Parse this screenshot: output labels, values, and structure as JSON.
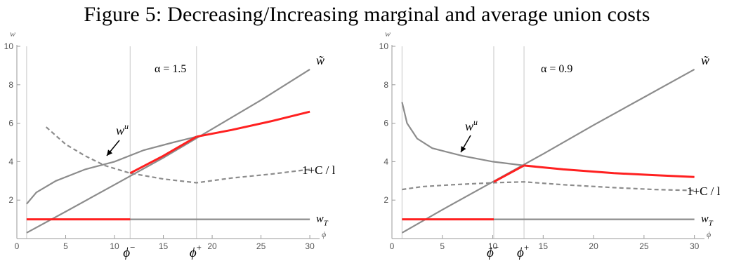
{
  "figure_title": "Figure 5: Decreasing/Increasing marginal and average union costs",
  "chart_data": [
    {
      "type": "line",
      "annotation": "α = 1.5",
      "ylabel": "w",
      "xlabel": "ϕ",
      "xlim": [
        0,
        31
      ],
      "ylim": [
        0,
        10
      ],
      "x_ticks": [
        0,
        5,
        10,
        15,
        20,
        25,
        30
      ],
      "y_ticks": [
        2,
        4,
        6,
        8,
        10
      ],
      "vlines": [
        {
          "x": 11.6,
          "label": "ϕ−"
        },
        {
          "x": 18.4,
          "label": "ϕ+"
        }
      ],
      "series": [
        {
          "name": "w̃",
          "style": "gray",
          "points": [
            [
              1,
              0.3
            ],
            [
              5,
              1.4
            ],
            [
              10,
              2.8
            ],
            [
              15,
              4.2
            ],
            [
              20,
              5.7
            ],
            [
              25,
              7.2
            ],
            [
              30,
              8.8
            ]
          ]
        },
        {
          "name": "wᵘ",
          "style": "gray",
          "points": [
            [
              1,
              1.8
            ],
            [
              2,
              2.4
            ],
            [
              4,
              3.0
            ],
            [
              7,
              3.6
            ],
            [
              10,
              4.0
            ],
            [
              13,
              4.6
            ],
            [
              16,
              5.0
            ],
            [
              18.4,
              5.3
            ]
          ]
        },
        {
          "name": "1+C/l",
          "style": "dashed",
          "points": [
            [
              3,
              5.8
            ],
            [
              5,
              4.9
            ],
            [
              7,
              4.3
            ],
            [
              9,
              3.8
            ],
            [
              11.6,
              3.4
            ],
            [
              15,
              3.1
            ],
            [
              18.4,
              2.9
            ],
            [
              22,
              3.15
            ],
            [
              26,
              3.35
            ],
            [
              30,
              3.6
            ]
          ]
        },
        {
          "name": "w_T",
          "style": "gray",
          "points": [
            [
              1,
              1.0
            ],
            [
              30,
              1.0
            ]
          ]
        },
        {
          "name": "",
          "style": "red",
          "points": [
            [
              1,
              1.0
            ],
            [
              11.6,
              1.0
            ]
          ]
        },
        {
          "name": "",
          "style": "red",
          "points": [
            [
              11.6,
              3.4
            ],
            [
              15,
              4.3
            ],
            [
              18.4,
              5.3
            ]
          ]
        },
        {
          "name": "",
          "style": "red",
          "points": [
            [
              18.4,
              5.3
            ],
            [
              22,
              5.65
            ],
            [
              26,
              6.1
            ],
            [
              30,
              6.6
            ]
          ]
        }
      ],
      "labels": {
        "w_tilde": "w̃",
        "w_u_base": "w",
        "w_u_sup": "u",
        "cost": "1+C / l",
        "w_t_base": "w",
        "w_t_sub": "T",
        "phi_minus_base": "ϕ",
        "phi_minus_sup": "−",
        "phi_plus_base": "ϕ",
        "phi_plus_sup": "+"
      }
    },
    {
      "type": "line",
      "annotation": "α = 0.9",
      "ylabel": "w",
      "xlabel": "ϕ",
      "xlim": [
        0,
        31
      ],
      "ylim": [
        0,
        10
      ],
      "x_ticks": [
        0,
        5,
        10,
        15,
        20,
        25,
        30
      ],
      "y_ticks": [
        2,
        4,
        6,
        8,
        10
      ],
      "vlines": [
        {
          "x": 10.1,
          "label": "ϕ−"
        },
        {
          "x": 13.1,
          "label": "ϕ+"
        }
      ],
      "series": [
        {
          "name": "w̃",
          "style": "gray",
          "points": [
            [
              1,
              0.3
            ],
            [
              5,
              1.5
            ],
            [
              10,
              2.95
            ],
            [
              15,
              4.4
            ],
            [
              20,
              5.9
            ],
            [
              25,
              7.35
            ],
            [
              30,
              8.8
            ]
          ]
        },
        {
          "name": "wᵘ",
          "style": "gray",
          "points": [
            [
              1,
              7.1
            ],
            [
              1.5,
              6.0
            ],
            [
              2.5,
              5.2
            ],
            [
              4,
              4.7
            ],
            [
              7,
              4.3
            ],
            [
              10,
              4.0
            ],
            [
              13.1,
              3.8
            ]
          ]
        },
        {
          "name": "1+C/l",
          "style": "dashed",
          "points": [
            [
              1,
              2.55
            ],
            [
              3,
              2.7
            ],
            [
              6,
              2.8
            ],
            [
              10,
              2.9
            ],
            [
              13.1,
              2.95
            ],
            [
              17,
              2.8
            ],
            [
              22,
              2.65
            ],
            [
              26,
              2.55
            ],
            [
              30,
              2.5
            ]
          ]
        },
        {
          "name": "w_T",
          "style": "gray",
          "points": [
            [
              1,
              1.0
            ],
            [
              30,
              1.0
            ]
          ]
        },
        {
          "name": "",
          "style": "red",
          "points": [
            [
              1,
              1.0
            ],
            [
              10.1,
              1.0
            ]
          ]
        },
        {
          "name": "",
          "style": "red",
          "points": [
            [
              10.1,
              2.95
            ],
            [
              13.1,
              3.8
            ]
          ]
        },
        {
          "name": "",
          "style": "red",
          "points": [
            [
              13.1,
              3.8
            ],
            [
              17,
              3.6
            ],
            [
              22,
              3.4
            ],
            [
              26,
              3.3
            ],
            [
              30,
              3.2
            ]
          ]
        }
      ],
      "labels": {
        "w_tilde": "w̃",
        "w_u_base": "w",
        "w_u_sup": "u",
        "cost": "1+C / l",
        "w_t_base": "w",
        "w_t_sub": "T",
        "phi_minus_base": "ϕ",
        "phi_minus_sup": "−",
        "phi_plus_base": "ϕ",
        "phi_plus_sup": "+"
      }
    }
  ]
}
